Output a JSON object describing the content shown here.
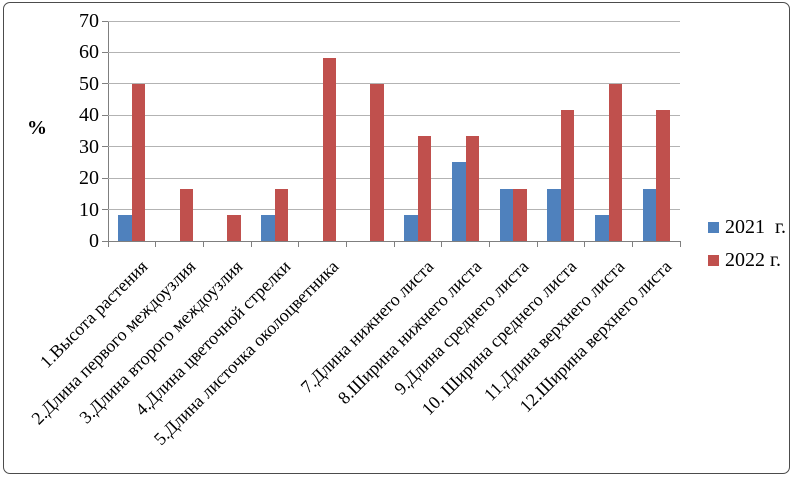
{
  "chart_data": {
    "type": "bar",
    "title": "",
    "xlabel": "",
    "ylabel": "%",
    "ylim": [
      0,
      70
    ],
    "ytick_step": 10,
    "grid": true,
    "legend_position": "right",
    "categories": [
      "1.Высота растения",
      "2.Длина первого междоузлия",
      "3.Длина второго междоузлия",
      "4.Длина цветочной стрелки",
      "5.Длина листочка околоцветника",
      "",
      "7.Длина нижнего листа",
      "8.Ширина нижнего листа",
      "9.Длина среднего листа",
      "10. Ширина среднего листа",
      "11.Длина верхнего листа",
      "12.Ширина верхнего листа"
    ],
    "series": [
      {
        "name": "2021  г.",
        "color": "#4F81BD",
        "values": [
          8.3,
          0,
          0,
          8.3,
          0,
          0,
          8.3,
          25,
          16.7,
          16.7,
          8.3,
          16.7
        ]
      },
      {
        "name": "2022 г.",
        "color": "#C0504D",
        "values": [
          50,
          16.7,
          8.3,
          16.7,
          58.3,
          50,
          33.3,
          33.3,
          16.7,
          41.7,
          50,
          41.7
        ]
      }
    ]
  },
  "colors": {
    "background": "#ffffff",
    "frame": "#4c4c4c",
    "axis": "#7f7f7f",
    "gridline": "#b3b3b3",
    "text": "#000000",
    "series_2021": "#4F81BD",
    "series_2022": "#C0504D"
  }
}
